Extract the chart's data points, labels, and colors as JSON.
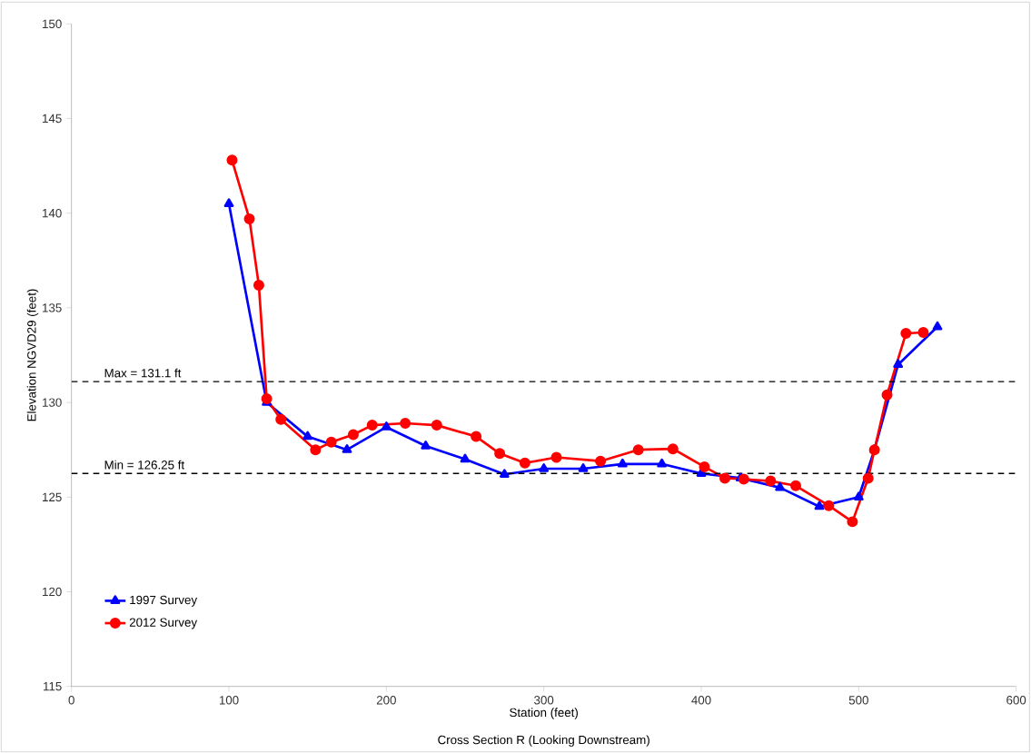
{
  "chart_data": {
    "type": "line",
    "xlabel": "Station (feet)",
    "ylabel": "Elevation NGVD29 (feet)",
    "annotations": [
      "Cross Section R (Looking Downstream)"
    ],
    "xlim": [
      0,
      600
    ],
    "ylim": [
      115,
      150
    ],
    "xticks": [
      0,
      100,
      200,
      300,
      400,
      500,
      600
    ],
    "yticks": [
      115,
      120,
      125,
      130,
      135,
      140,
      145,
      150
    ],
    "grid": false,
    "legend": "bottom left",
    "line_style": "solid",
    "ref_lines": [
      {
        "axis": "y",
        "value": 131.1,
        "label": "Max = 131.1 ft",
        "color": "#000000",
        "line_style": "dashed"
      },
      {
        "axis": "y",
        "value": 126.25,
        "label": "Min = 126.25 ft",
        "color": "#000000",
        "line_style": "dashed"
      }
    ],
    "series": [
      {
        "name": "1997 Survey",
        "color": "#0000ff",
        "marker": "triangle",
        "x": [
          100,
          124,
          150,
          175,
          200,
          225,
          250,
          275,
          300,
          325,
          350,
          375,
          400,
          425,
          450,
          475,
          500,
          510,
          525,
          550
        ],
        "values": [
          140.5,
          130,
          128.2,
          127.5,
          128.7,
          127.7,
          127,
          126.2,
          126.5,
          126.5,
          126.75,
          126.75,
          126.25,
          126,
          125.5,
          124.5,
          125,
          127.5,
          132,
          134
        ]
      },
      {
        "name": "2012 Survey",
        "color": "#ff0000",
        "marker": "circle",
        "x": [
          102,
          113,
          119,
          124,
          133,
          155,
          165,
          179,
          191,
          212,
          232,
          257,
          272,
          288,
          308,
          336,
          360,
          382,
          402,
          415,
          427,
          444,
          460,
          481,
          496,
          506,
          510,
          518,
          530,
          541
        ],
        "values": [
          142.8,
          139.7,
          136.2,
          130.2,
          129.1,
          127.5,
          127.9,
          128.3,
          128.8,
          128.9,
          128.8,
          128.2,
          127.3,
          126.8,
          127.1,
          126.9,
          127.5,
          127.55,
          126.6,
          126,
          125.95,
          125.85,
          125.6,
          124.55,
          123.7,
          126,
          127.5,
          130.4,
          133.65,
          133.7
        ]
      }
    ]
  }
}
